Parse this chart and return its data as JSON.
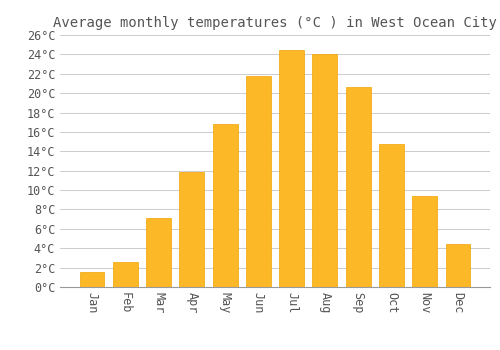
{
  "title": "Average monthly temperatures (°C ) in West Ocean City",
  "months": [
    "Jan",
    "Feb",
    "Mar",
    "Apr",
    "May",
    "Jun",
    "Jul",
    "Aug",
    "Sep",
    "Oct",
    "Nov",
    "Dec"
  ],
  "values": [
    1.5,
    2.6,
    7.1,
    11.9,
    16.8,
    21.8,
    24.5,
    24.0,
    20.6,
    14.8,
    9.4,
    4.4
  ],
  "bar_color": "#FDB827",
  "bar_edge_color": "#F0A500",
  "background_color": "#FFFFFF",
  "grid_color": "#CCCCCC",
  "text_color": "#555555",
  "ylim": [
    0,
    26
  ],
  "ytick_step": 2,
  "title_fontsize": 10,
  "tick_fontsize": 8.5,
  "font_family": "monospace",
  "bar_width": 0.75
}
